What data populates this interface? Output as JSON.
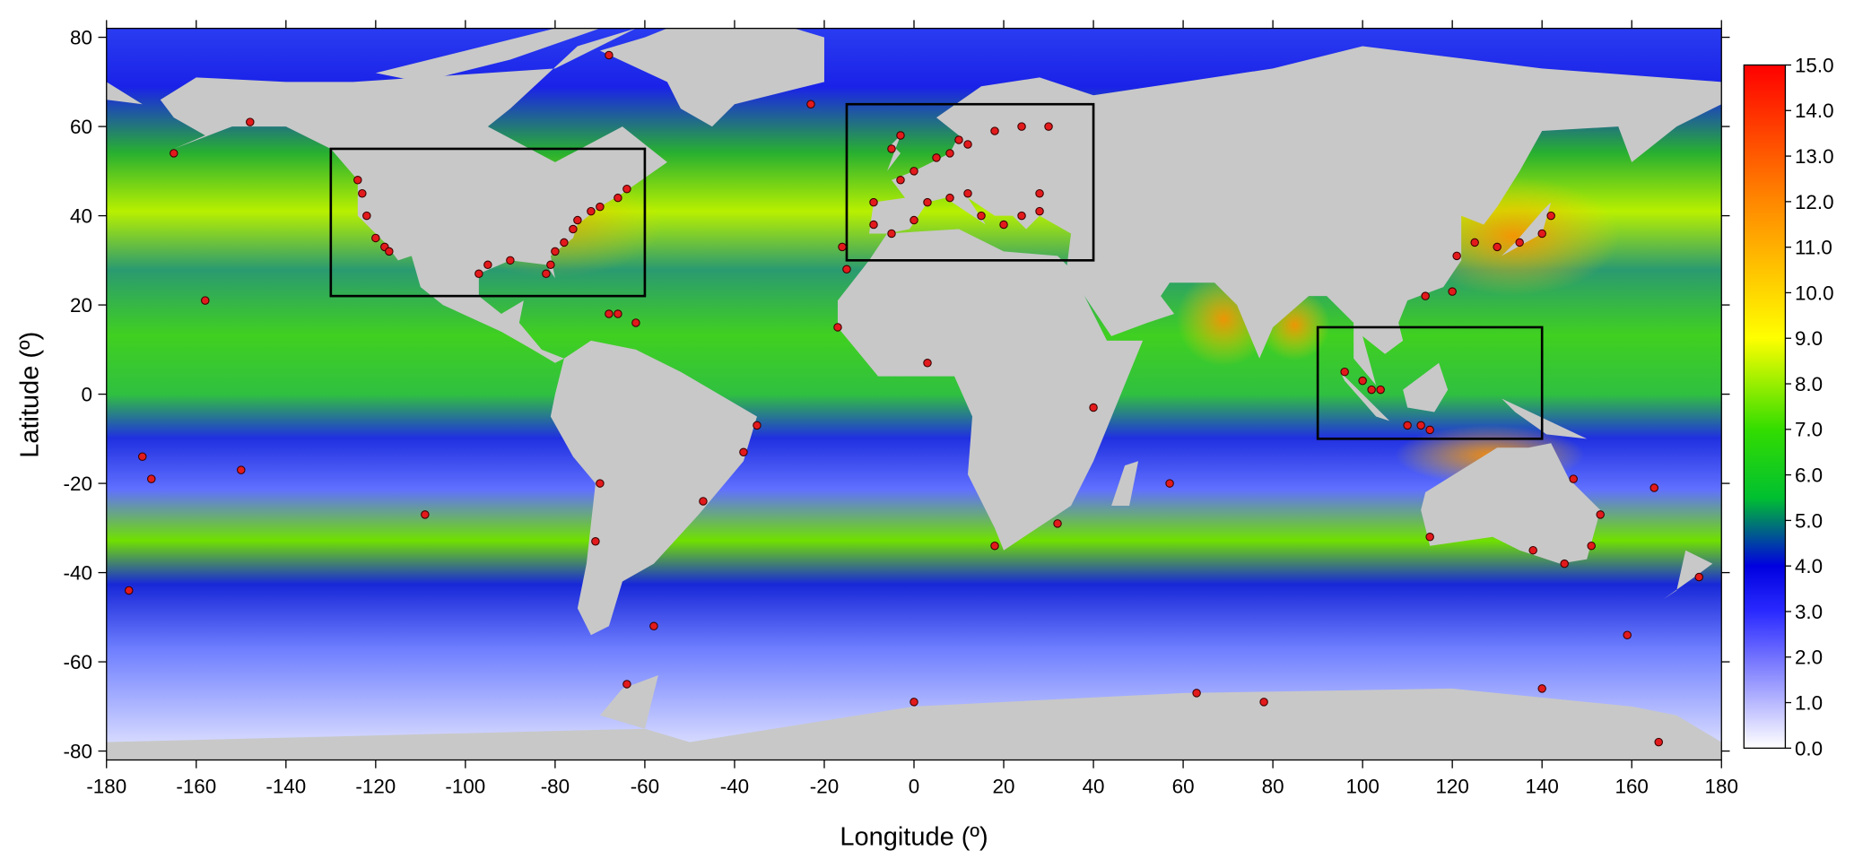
{
  "chart_data": {
    "type": "map",
    "xlabel": "Longitude (º)",
    "ylabel": "Latitude (º)",
    "xlim": [
      -180,
      180
    ],
    "ylim": [
      -82,
      82
    ],
    "xticks": [
      -180,
      -160,
      -140,
      -120,
      -100,
      -80,
      -60,
      -40,
      -20,
      0,
      20,
      40,
      60,
      80,
      100,
      120,
      140,
      160,
      180
    ],
    "yticks": [
      -80,
      -60,
      -40,
      -20,
      0,
      20,
      40,
      60,
      80
    ],
    "colorbar": {
      "lim": [
        0,
        15
      ],
      "ticks": [
        {
          "value": 0,
          "label": "0.0"
        },
        {
          "value": 1,
          "label": "1.0"
        },
        {
          "value": 2,
          "label": "2.0"
        },
        {
          "value": 3,
          "label": "3.0"
        },
        {
          "value": 4,
          "label": "4.0"
        },
        {
          "value": 5,
          "label": "5.0"
        },
        {
          "value": 6,
          "label": "6.0"
        },
        {
          "value": 7,
          "label": "7.0"
        },
        {
          "value": 8,
          "label": "8.0"
        },
        {
          "value": 9,
          "label": "9.0"
        },
        {
          "value": 10,
          "label": "10.0"
        },
        {
          "value": 11,
          "label": "11.0"
        },
        {
          "value": 12,
          "label": "12.0"
        },
        {
          "value": 13,
          "label": "13.0"
        },
        {
          "value": 14,
          "label": "14.0"
        },
        {
          "value": 15,
          "label": "15.0"
        }
      ],
      "colormap": [
        {
          "value": 0,
          "color": "#ffffff"
        },
        {
          "value": 3,
          "color": "#2a2aff"
        },
        {
          "value": 4,
          "color": "#0000e0"
        },
        {
          "value": 5.5,
          "color": "#00c030"
        },
        {
          "value": 7,
          "color": "#33dd00"
        },
        {
          "value": 9,
          "color": "#ffff00"
        },
        {
          "value": 12,
          "color": "#ff8800"
        },
        {
          "value": 15,
          "color": "#ff0000"
        }
      ]
    },
    "regions": [
      {
        "lon": [
          -130,
          -60
        ],
        "lat": [
          22,
          55
        ]
      },
      {
        "lon": [
          -15,
          40
        ],
        "lat": [
          30,
          65
        ]
      },
      {
        "lon": [
          90,
          140
        ],
        "lat": [
          -10,
          15
        ]
      }
    ],
    "region_color": "#000000",
    "stations": {
      "color": "#e31a1c",
      "lon": [
        -124,
        -123,
        -122,
        -120,
        -118,
        -117,
        -70,
        -72,
        -75,
        -76,
        -78,
        -80,
        -81,
        -82,
        -90,
        -95,
        -97,
        -66,
        -62,
        -68,
        -64,
        -66,
        -9,
        -9,
        -5,
        0,
        3,
        8,
        12,
        15,
        20,
        24,
        28,
        -3,
        0,
        5,
        8,
        10,
        12,
        18,
        24,
        28,
        30,
        -5,
        -3,
        100,
        102,
        104,
        96,
        110,
        113,
        115,
        120,
        125,
        130,
        135,
        140,
        142,
        121,
        114,
        115,
        153,
        151,
        145,
        138,
        -158,
        -150,
        -172,
        -170,
        -109,
        -71,
        -70,
        -38,
        -35,
        -47,
        -58,
        -64,
        -148,
        -165,
        -175,
        3,
        40,
        32,
        57,
        18,
        -17,
        -23,
        -68,
        -15,
        175,
        166,
        140,
        0,
        78,
        63,
        159,
        165,
        147,
        -16
      ],
      "lat": [
        48,
        45,
        40,
        35,
        33,
        32,
        42,
        41,
        39,
        37,
        34,
        32,
        29,
        27,
        30,
        29,
        27,
        18,
        16,
        18,
        46,
        44,
        43,
        38,
        36,
        39,
        43,
        44,
        45,
        40,
        38,
        40,
        41,
        48,
        50,
        53,
        54,
        57,
        56,
        59,
        60,
        45,
        60,
        55,
        58,
        3,
        1,
        1,
        5,
        -7,
        -7,
        -8,
        23,
        34,
        33,
        34,
        36,
        40,
        31,
        22,
        -32,
        -27,
        -34,
        -38,
        -35,
        21,
        -17,
        -14,
        -19,
        -27,
        -33,
        -20,
        -13,
        -7,
        -24,
        -52,
        -65,
        61,
        54,
        -44,
        7,
        -3,
        -29,
        -20,
        -34,
        15,
        65,
        76,
        28,
        -41,
        -78,
        -66,
        -69,
        -69,
        -67,
        -54,
        -21,
        -19,
        33
      ]
    }
  }
}
